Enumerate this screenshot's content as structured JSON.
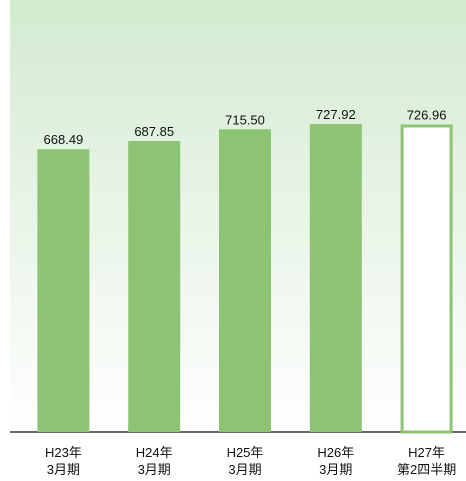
{
  "chart_data": {
    "type": "bar",
    "categories": [
      [
        "H23年",
        "3月期"
      ],
      [
        "H24年",
        "3月期"
      ],
      [
        "H25年",
        "3月期"
      ],
      [
        "H26年",
        "3月期"
      ],
      [
        "H27年",
        "第2四半期"
      ]
    ],
    "values": [
      668.49,
      687.85,
      715.5,
      727.92,
      726.96
    ],
    "value_labels": [
      "668.49",
      "687.85",
      "715.50",
      "727.92",
      "726.96"
    ],
    "colors": [
      "#8cc474",
      "#8cc474",
      "#8cc474",
      "#8cc474",
      "#ffffff"
    ],
    "edgecolor": "#8cc474",
    "ylim": [
      0,
      1000
    ]
  }
}
